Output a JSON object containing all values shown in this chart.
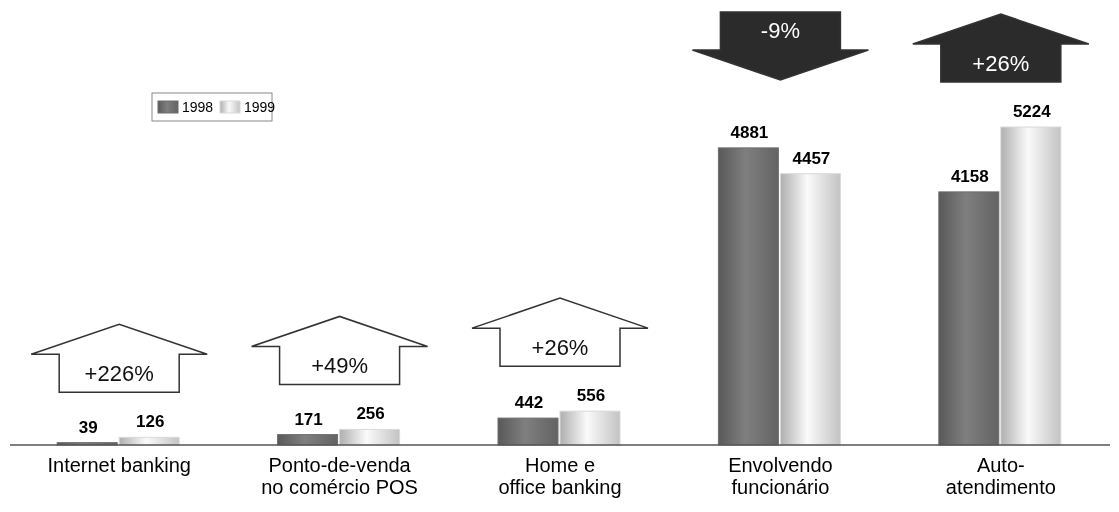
{
  "chart_data": {
    "type": "bar",
    "categories": [
      "Internet banking",
      "Ponto-de-venda\nno comércio POS",
      "Home e\noffice banking",
      "Envolvendo\nfuncionário",
      "Auto-\natendimento"
    ],
    "series": [
      {
        "name": "1998",
        "color": "#6e6e6e",
        "values": [
          39,
          171,
          442,
          4881,
          4158
        ]
      },
      {
        "name": "1999",
        "color": "#d9d9d9",
        "values": [
          126,
          256,
          556,
          4457,
          5224
        ]
      }
    ],
    "data_labels": true,
    "legend": "top left",
    "annotations": [
      "+226%",
      "+49%",
      "+26%",
      "-9%",
      "+26%"
    ]
  }
}
